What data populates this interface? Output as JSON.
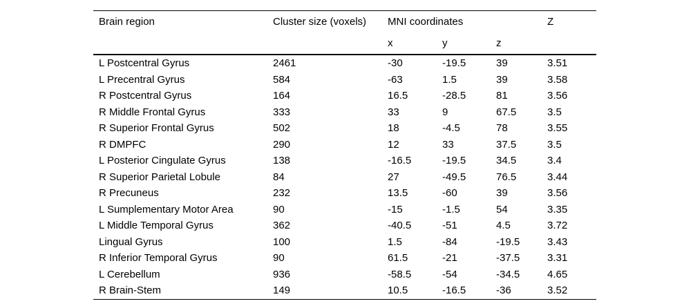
{
  "table": {
    "header": {
      "brain_region": "Brain region",
      "cluster_size": "Cluster size (voxels)",
      "mni": "MNI coordinates",
      "z_stat": "Z",
      "sub": {
        "x": "x",
        "y": "y",
        "z": "z"
      }
    },
    "rows": [
      {
        "region": "L Postcentral Gyrus",
        "cluster_size": "2461",
        "x": "-30",
        "y": "-19.5",
        "z": "39",
        "z_stat": "3.51"
      },
      {
        "region": "L Precentral Gyrus",
        "cluster_size": "584",
        "x": "-63",
        "y": "1.5",
        "z": "39",
        "z_stat": "3.58"
      },
      {
        "region": "R Postcentral Gyrus",
        "cluster_size": "164",
        "x": "16.5",
        "y": "-28.5",
        "z": "81",
        "z_stat": "3.56"
      },
      {
        "region": "R Middle Frontal Gyrus",
        "cluster_size": "333",
        "x": "33",
        "y": "9",
        "z": "67.5",
        "z_stat": "3.5"
      },
      {
        "region": "R Superior Frontal Gyrus",
        "cluster_size": "502",
        "x": "18",
        "y": "-4.5",
        "z": "78",
        "z_stat": "3.55"
      },
      {
        "region": "R DMPFC",
        "cluster_size": "290",
        "x": "12",
        "y": "33",
        "z": "37.5",
        "z_stat": "3.5"
      },
      {
        "region": "L Posterior Cingulate Gyrus",
        "cluster_size": "138",
        "x": "-16.5",
        "y": "-19.5",
        "z": "34.5",
        "z_stat": "3.4"
      },
      {
        "region": "R Superior Parietal Lobule",
        "cluster_size": "84",
        "x": "27",
        "y": "-49.5",
        "z": "76.5",
        "z_stat": "3.44"
      },
      {
        "region": "R Precuneus",
        "cluster_size": "232",
        "x": "13.5",
        "y": "-60",
        "z": "39",
        "z_stat": "3.56"
      },
      {
        "region": "L Sumplementary Motor Area",
        "cluster_size": "90",
        "x": "-15",
        "y": "-1.5",
        "z": "54",
        "z_stat": "3.35"
      },
      {
        "region": "L Middle Temporal Gyrus",
        "cluster_size": "362",
        "x": "-40.5",
        "y": "-51",
        "z": "4.5",
        "z_stat": "3.72"
      },
      {
        "region": "Lingual Gyrus",
        "cluster_size": "100",
        "x": "1.5",
        "y": "-84",
        "z": "-19.5",
        "z_stat": "3.43"
      },
      {
        "region": "R Inferior Temporal Gyrus",
        "cluster_size": "90",
        "x": "61.5",
        "y": "-21",
        "z": "-37.5",
        "z_stat": "3.31"
      },
      {
        "region": "L Cerebellum",
        "cluster_size": "936",
        "x": "-58.5",
        "y": "-54",
        "z": "-34.5",
        "z_stat": "4.65"
      },
      {
        "region": "R Brain-Stem",
        "cluster_size": "149",
        "x": "10.5",
        "y": "-16.5",
        "z": "-36",
        "z_stat": "3.52"
      }
    ]
  },
  "colors": {
    "background": "#ffffff",
    "text": "#000000",
    "rule": "#000000"
  }
}
